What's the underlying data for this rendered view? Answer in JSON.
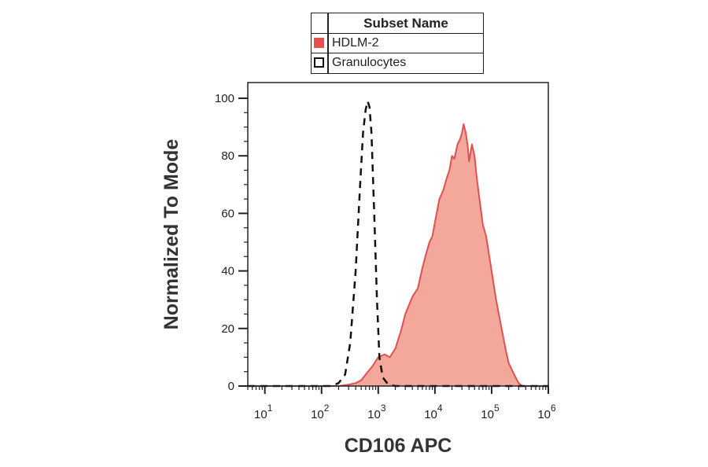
{
  "legend": {
    "title": "Subset Name",
    "items": [
      {
        "label": "HDLM-2",
        "style": "filled",
        "color": "#e84f4f"
      },
      {
        "label": "Granulocytes",
        "style": "dashed-outline",
        "color": "#111111"
      }
    ]
  },
  "chart_data": {
    "type": "area",
    "xlabel": "CD106 APC",
    "ylabel": "Normalized To Mode",
    "x_scale": "log",
    "xlim": [
      5,
      1000000
    ],
    "ylim": [
      0,
      100
    ],
    "yticks": [
      "0",
      "20",
      "40",
      "60",
      "80",
      "100"
    ],
    "xticks": [
      {
        "base": "10",
        "exp": "1"
      },
      {
        "base": "10",
        "exp": "2"
      },
      {
        "base": "10",
        "exp": "3"
      },
      {
        "base": "10",
        "exp": "4"
      },
      {
        "base": "10",
        "exp": "5"
      },
      {
        "base": "10",
        "exp": "6"
      }
    ],
    "series": [
      {
        "name": "HDLM-2",
        "style": "filled",
        "stroke": "#e05050",
        "fill": "#f4a89c",
        "points": [
          [
            5,
            0
          ],
          [
            100,
            0
          ],
          [
            200,
            0
          ],
          [
            300,
            0.5
          ],
          [
            400,
            1
          ],
          [
            500,
            2
          ],
          [
            600,
            4
          ],
          [
            800,
            7
          ],
          [
            1000,
            10
          ],
          [
            1300,
            11
          ],
          [
            1600,
            10
          ],
          [
            2000,
            13
          ],
          [
            2500,
            19
          ],
          [
            3000,
            25
          ],
          [
            4000,
            31
          ],
          [
            5000,
            34
          ],
          [
            6000,
            41
          ],
          [
            7000,
            46
          ],
          [
            8000,
            50
          ],
          [
            9000,
            52
          ],
          [
            10000,
            57
          ],
          [
            12000,
            65
          ],
          [
            14000,
            68
          ],
          [
            16000,
            72
          ],
          [
            18000,
            75
          ],
          [
            20000,
            80
          ],
          [
            22000,
            79
          ],
          [
            25000,
            84
          ],
          [
            28000,
            86
          ],
          [
            30000,
            88
          ],
          [
            32000,
            91
          ],
          [
            35000,
            88
          ],
          [
            38000,
            83
          ],
          [
            40000,
            78
          ],
          [
            45000,
            84
          ],
          [
            50000,
            80
          ],
          [
            55000,
            72
          ],
          [
            60000,
            66
          ],
          [
            70000,
            56
          ],
          [
            80000,
            52
          ],
          [
            100000,
            40
          ],
          [
            120000,
            30
          ],
          [
            150000,
            20
          ],
          [
            180000,
            12
          ],
          [
            200000,
            8
          ],
          [
            250000,
            4
          ],
          [
            300000,
            1
          ],
          [
            350000,
            0
          ],
          [
            1000000,
            0
          ]
        ]
      },
      {
        "name": "Granulocytes",
        "style": "dashed",
        "stroke": "#111111",
        "points": [
          [
            5,
            0
          ],
          [
            150,
            0
          ],
          [
            200,
            1
          ],
          [
            260,
            4
          ],
          [
            320,
            15
          ],
          [
            400,
            40
          ],
          [
            480,
            70
          ],
          [
            540,
            88
          ],
          [
            600,
            96
          ],
          [
            650,
            99
          ],
          [
            700,
            97
          ],
          [
            760,
            88
          ],
          [
            850,
            60
          ],
          [
            950,
            30
          ],
          [
            1050,
            10
          ],
          [
            1200,
            3
          ],
          [
            1500,
            0.5
          ],
          [
            2000,
            0
          ],
          [
            1000000,
            0
          ]
        ]
      }
    ]
  }
}
